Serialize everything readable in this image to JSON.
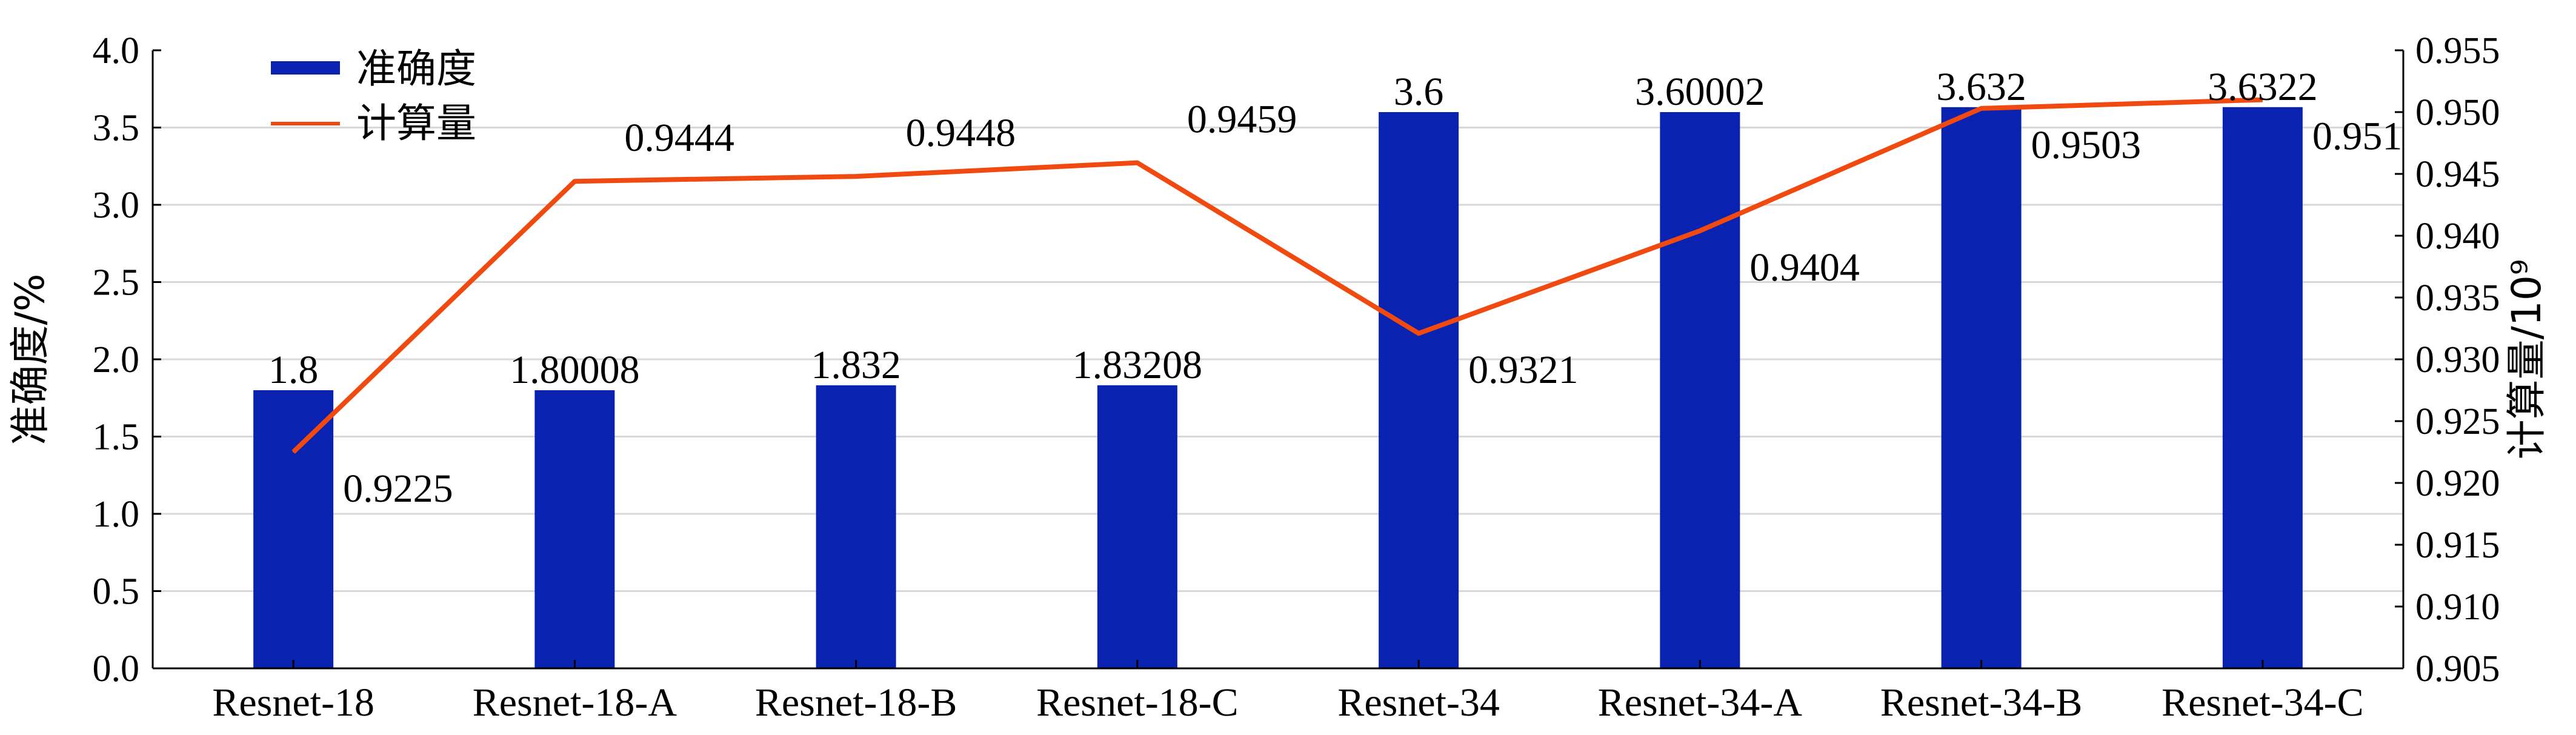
{
  "chart_data": {
    "type": "bar",
    "categories": [
      "Resnet-18",
      "Resnet-18-A",
      "Resnet-18-B",
      "Resnet-18-C",
      "Resnet-34",
      "Resnet-34-A",
      "Resnet-34-B",
      "Resnet-34-C"
    ],
    "series": [
      {
        "name": "准确度",
        "type": "bar",
        "axis": "left",
        "color": "#0a22b0",
        "values": [
          1.8,
          1.80008,
          1.832,
          1.83208,
          3.6,
          3.60002,
          3.632,
          3.6322
        ],
        "value_labels": [
          "1.8",
          "1.80008",
          "1.832",
          "1.83208",
          "3.6",
          "3.60002",
          "3.632",
          "3.6322"
        ]
      },
      {
        "name": "计算量",
        "type": "line",
        "axis": "right",
        "color": "#f04a10",
        "values": [
          0.9225,
          0.9444,
          0.9448,
          0.9459,
          0.9321,
          0.9404,
          0.9503,
          0.951
        ],
        "value_labels": [
          "0.9225",
          "0.9444",
          "0.9448",
          "0.9459",
          "0.9321",
          "0.9404",
          "0.9503",
          "0.951"
        ]
      }
    ],
    "ylabel": "准确度/%",
    "y2label": "计算量/10⁹",
    "ylim": [
      0,
      4.0
    ],
    "y2lim": [
      0.905,
      0.955
    ],
    "yticks": [
      "0.0",
      "0.5",
      "1.0",
      "1.5",
      "2.0",
      "2.5",
      "3.0",
      "3.5",
      "4.0"
    ],
    "y2ticks": [
      "0.905",
      "0.910",
      "0.915",
      "0.920",
      "0.925",
      "0.930",
      "0.935",
      "0.940",
      "0.945",
      "0.950",
      "0.955"
    ],
    "grid": true,
    "legend": "top-left"
  }
}
